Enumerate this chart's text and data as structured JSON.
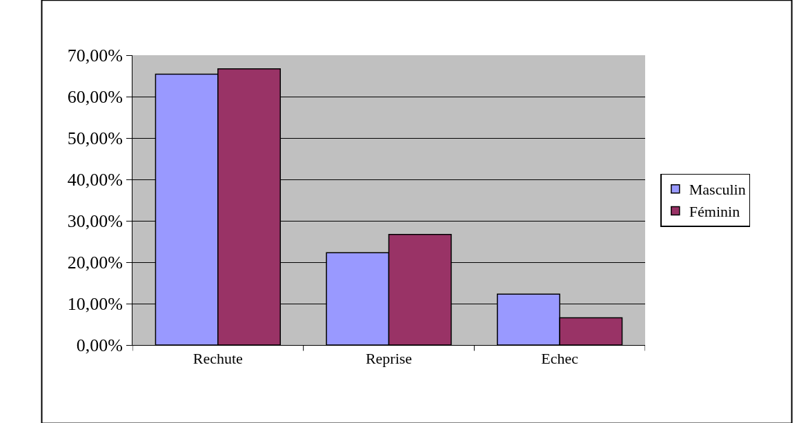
{
  "chart_data": {
    "type": "bar",
    "categories": [
      "Rechute",
      "Reprise",
      "Echec"
    ],
    "series": [
      {
        "name": "Masculin",
        "color": "#9999ff",
        "values": [
          65.4,
          22.3,
          12.3
        ]
      },
      {
        "name": "Féminin",
        "color": "#993366",
        "values": [
          66.7,
          26.7,
          6.6
        ]
      }
    ],
    "ylim": [
      0,
      70
    ],
    "yticks": [
      {
        "value": 0,
        "label": "0,00%"
      },
      {
        "value": 10,
        "label": "10,00%"
      },
      {
        "value": 20,
        "label": "20,00%"
      },
      {
        "value": 30,
        "label": "30,00%"
      },
      {
        "value": 40,
        "label": "40,00%"
      },
      {
        "value": 50,
        "label": "50,00%"
      },
      {
        "value": 60,
        "label": "60,00%"
      },
      {
        "value": 70,
        "label": "70,00%"
      }
    ],
    "grid": "y",
    "legend": "right"
  }
}
